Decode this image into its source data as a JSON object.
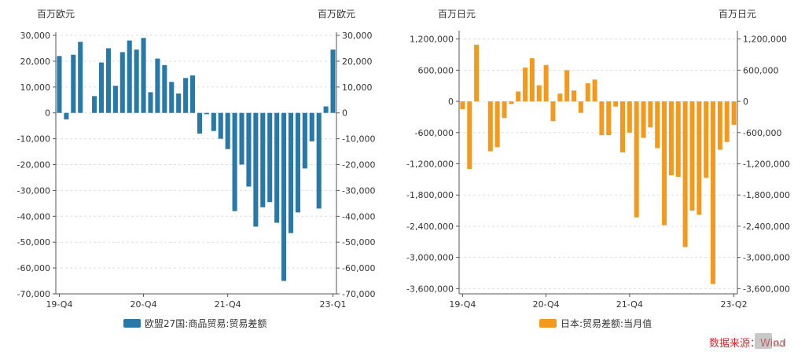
{
  "source_text": "数据来源：Wind",
  "chart_data": [
    {
      "type": "bar",
      "color": "#2878a8",
      "unit_left": "百万欧元",
      "unit_right": "百万欧元",
      "ylim": [
        -70000,
        30000
      ],
      "yticks": [
        30000,
        20000,
        10000,
        0,
        -10000,
        -20000,
        -30000,
        -40000,
        -50000,
        -60000,
        -70000
      ],
      "ytick_labels_left": [
        "30,000",
        "20,000",
        "10,000",
        "0",
        "-10,000",
        "-20,000",
        "-30,000",
        "-40,000",
        "-50,000",
        "-60,000",
        "-70,000"
      ],
      "ytick_labels_right": [
        "30,000",
        "20,000",
        "10,000",
        "0",
        "-10,000",
        "-20,000",
        "-30,000",
        "-40,000",
        "-50,000",
        "-60,000",
        "-70,000"
      ],
      "xtick_labels": [
        {
          "label": "19-Q4",
          "at": 0
        },
        {
          "label": "20-Q4",
          "at": 12
        },
        {
          "label": "21-Q4",
          "at": 24
        },
        {
          "label": "23-Q1",
          "at": 39
        }
      ],
      "legend": "欧盟27国:商品贸易:贸易差额",
      "values": [
        22000,
        -2500,
        22500,
        27500,
        0,
        6500,
        19500,
        25000,
        10500,
        23500,
        28000,
        24500,
        29000,
        8000,
        21000,
        18500,
        12000,
        7500,
        13500,
        14500,
        -8000,
        -500,
        -7000,
        -10000,
        -14000,
        -38000,
        -20000,
        -28500,
        -44000,
        -36500,
        -34500,
        -42500,
        -65000,
        -46500,
        -38500,
        -21500,
        -11000,
        -37000,
        2500,
        24500
      ]
    },
    {
      "type": "bar",
      "color": "#f39a1e",
      "unit_left": "百万日元",
      "unit_right": "百万日元",
      "ylim": [
        -3700000,
        1300000
      ],
      "yticks": [
        1200000,
        600000,
        0,
        -600000,
        -1200000,
        -1800000,
        -2400000,
        -3000000,
        -3600000
      ],
      "ytick_labels_left": [
        "1,200,000",
        "600,000",
        "0",
        "-600,000",
        "-1,200,000",
        "-1,800,000",
        "-2,400,000",
        "-3,000,000",
        "-3,600,000"
      ],
      "ytick_labels_right": [
        "1,200,000",
        "600,000",
        "0",
        "-600,000",
        "-1,200,000",
        "-1,800,000",
        "-2,400,000",
        "-3,000,000",
        "-3,600,000"
      ],
      "xtick_labels": [
        {
          "label": "19-Q4",
          "at": 0
        },
        {
          "label": "20-Q4",
          "at": 12
        },
        {
          "label": "21-Q4",
          "at": 24
        },
        {
          "label": "23-Q2",
          "at": 39
        }
      ],
      "legend": "日本:贸易差额:当月值",
      "values": [
        -150000,
        -1300000,
        1090000,
        0,
        -960000,
        -880000,
        -320000,
        -50000,
        190000,
        650000,
        830000,
        310000,
        700000,
        -380000,
        150000,
        600000,
        210000,
        -220000,
        350000,
        420000,
        -650000,
        -650000,
        -100000,
        -980000,
        -600000,
        -2230000,
        -700000,
        -500000,
        -900000,
        -2380000,
        -1420000,
        -1450000,
        -2800000,
        -2100000,
        -2180000,
        -1470000,
        -3510000,
        -930000,
        -780000,
        -450000
      ]
    }
  ]
}
